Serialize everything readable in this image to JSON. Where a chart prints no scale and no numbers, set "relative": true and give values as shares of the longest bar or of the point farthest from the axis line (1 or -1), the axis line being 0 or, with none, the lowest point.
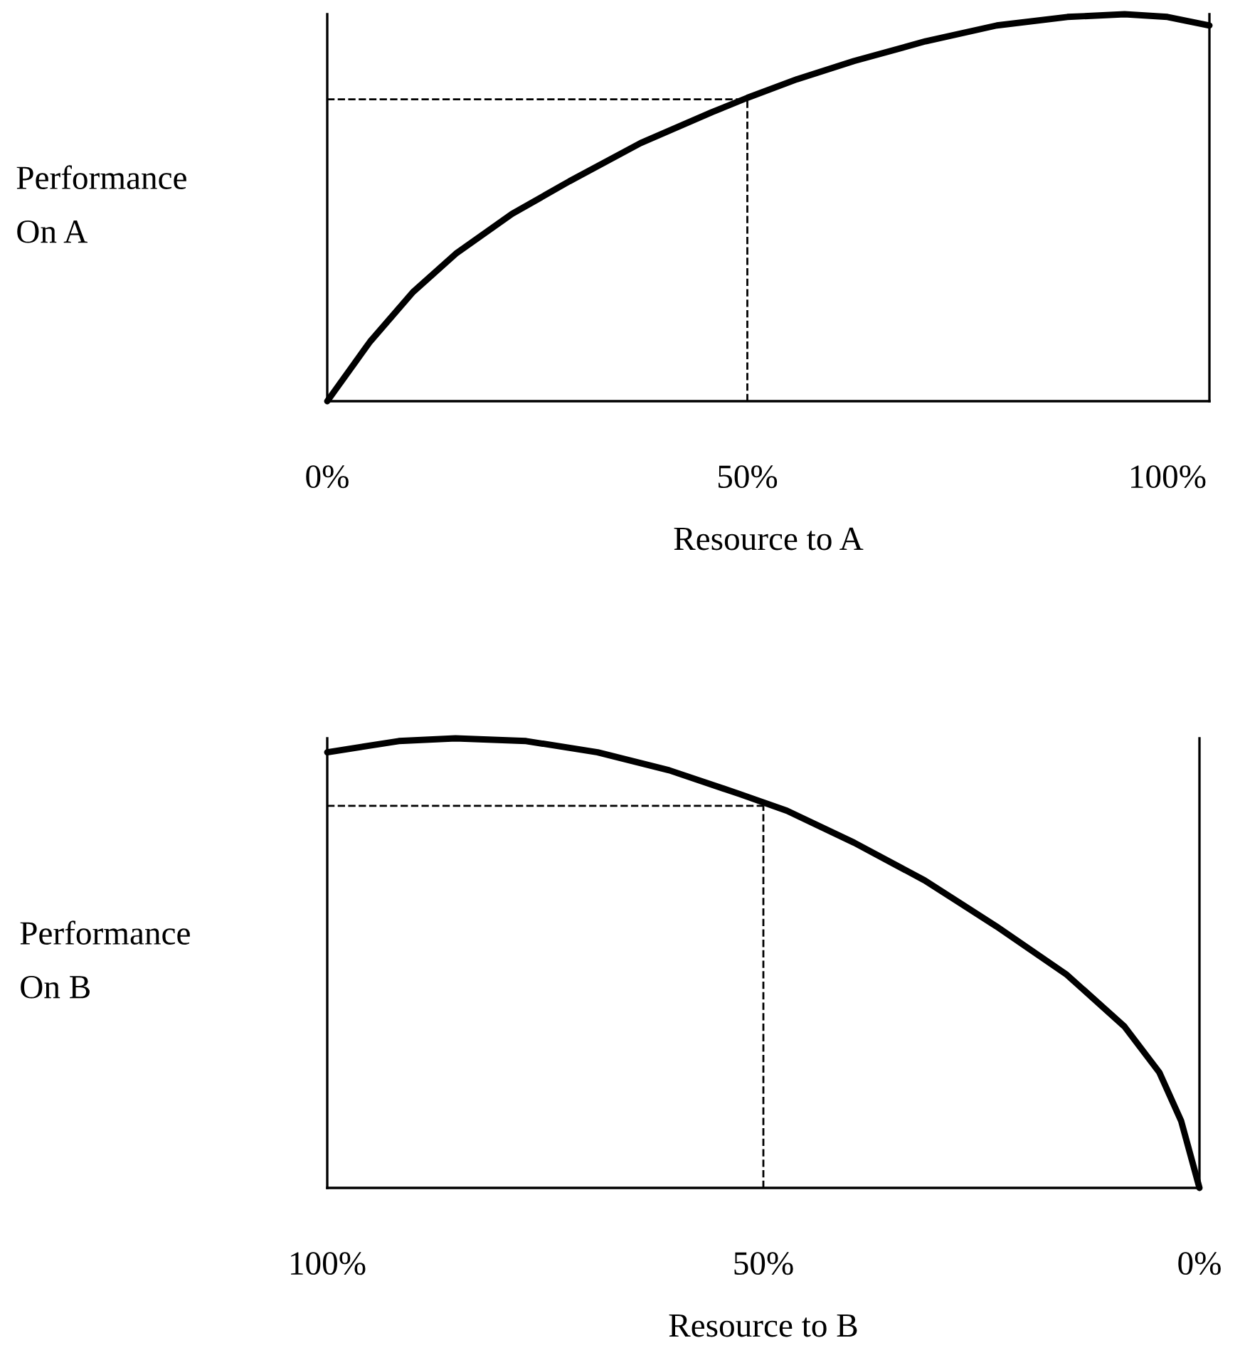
{
  "chart_data": [
    {
      "type": "line",
      "relative": true,
      "ylabel": "Performance\nOn A",
      "xlabel": "Resource to A",
      "xlim": [
        0,
        105
      ],
      "xticks": [
        {
          "value": 0,
          "label": "0%"
        },
        {
          "value": 50,
          "label": "50%"
        },
        {
          "value": 100,
          "label": "100%"
        }
      ],
      "grid": false,
      "legend": false,
      "line_style": "solid",
      "series": [
        {
          "color": "#000000",
          "x": [
            0,
            5.1,
            10.2,
            15.3,
            22,
            28.8,
            37.3,
            45.8,
            50,
            55.9,
            62.7,
            71.2,
            79.7,
            88.1,
            94.9,
            100,
            105
          ],
          "values": [
            0,
            0.154,
            0.282,
            0.381,
            0.484,
            0.568,
            0.667,
            0.747,
            0.784,
            0.832,
            0.879,
            0.93,
            0.971,
            0.993,
            1,
            0.993,
            0.971
          ]
        }
      ],
      "ref_lines": [
        {
          "axis": "x",
          "value": 50,
          "line_style": "dashed",
          "color": "#000000"
        },
        {
          "axis": "y",
          "value": 0.78,
          "line_style": "dashed",
          "color": "#000000"
        }
      ]
    },
    {
      "type": "line",
      "relative": true,
      "ylabel": "Performance\nOn B",
      "xlabel": "Resource to B",
      "xlim": [
        100,
        0
      ],
      "xticks": [
        {
          "value": 100,
          "label": "100%"
        },
        {
          "value": 50,
          "label": "50%"
        },
        {
          "value": 0,
          "label": "0%"
        }
      ],
      "grid": false,
      "legend": false,
      "line_style": "solid",
      "series": [
        {
          "color": "#000000",
          "x": [
            100,
            91.8,
            85.3,
            77.2,
            69,
            60.8,
            52.7,
            47.3,
            39.6,
            31.5,
            23.3,
            15.2,
            8.6,
            4.6,
            2.1,
            0
          ],
          "values": [
            0.969,
            0.994,
            1,
            0.994,
            0.969,
            0.929,
            0.876,
            0.839,
            0.768,
            0.684,
            0.582,
            0.474,
            0.359,
            0.257,
            0.149,
            0
          ]
        }
      ],
      "ref_lines": [
        {
          "axis": "x",
          "value": 50,
          "line_style": "dashed",
          "color": "#000000"
        },
        {
          "axis": "y",
          "value": 0.85,
          "line_style": "dashed",
          "color": "#000000"
        }
      ]
    }
  ]
}
